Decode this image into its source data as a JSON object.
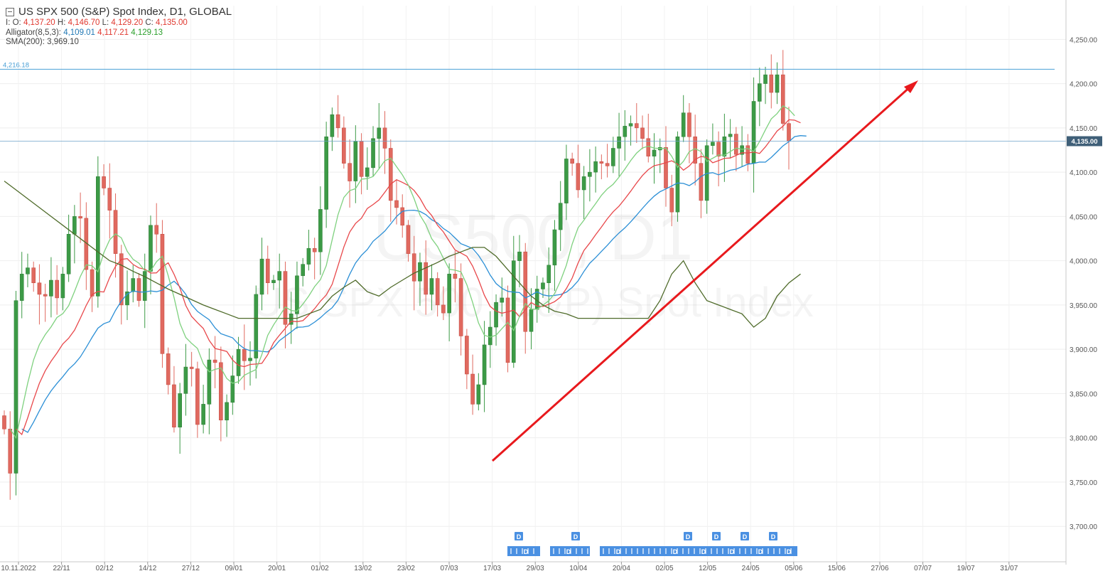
{
  "header": {
    "title": "US SPX 500 (S&P) Spot Index,  D1,  GLOBAL",
    "ohlc": {
      "o_label": "I: O:",
      "o": "4,137.20",
      "h_label": "H:",
      "h": "4,146.70",
      "l_label": "L:",
      "l": "4,129.20",
      "c_label": "C:",
      "c": "4,135.00"
    },
    "alligator": {
      "label": "Alligator(8,5,3):",
      "jaw": "4,109.01",
      "teeth": "4,117.21",
      "lips": "4,129.13"
    },
    "sma": {
      "label": "SMA(200):",
      "value": "3,969.10"
    }
  },
  "watermark": {
    "symbol": "US500, D1",
    "name": "US SPX 500 (S&P) Spot Index"
  },
  "colors": {
    "up": "#3c9a46",
    "down": "#e0695f",
    "jaw": "#2b8fd6",
    "teeth": "#e8474a",
    "lips": "#7fd17f",
    "sma": "#4f6b2a",
    "trend": "#e8191d",
    "hline": "#4aa0d6",
    "event": "#4a90e2"
  },
  "chart_data": {
    "type": "candlestick",
    "y_ticks": [
      "4,250.00",
      "4,200.00",
      "4,150.00",
      "4,100.00",
      "4,050.00",
      "4,000.00",
      "3,950.00",
      "3,900.00",
      "3,850.00",
      "3,800.00",
      "3,750.00",
      "3,700.00"
    ],
    "x_ticks": [
      "10.11.2022",
      "22/11",
      "02/12",
      "14/12",
      "27/12",
      "09/01",
      "20/01",
      "01/02",
      "13/02",
      "23/02",
      "07/03",
      "17/03",
      "29/03",
      "10/04",
      "20/04",
      "02/05",
      "12/05",
      "24/05",
      "05/06",
      "15/06",
      "27/06",
      "07/07",
      "19/07",
      "31/07"
    ],
    "ylim": [
      3660,
      4288
    ],
    "resistance": {
      "value": 4216.18,
      "label": "4,216.18"
    },
    "last_price": {
      "value": 4135.0,
      "label": "4,135.00"
    },
    "closes": [
      3810,
      3760,
      3955,
      3985,
      3992,
      3975,
      3962,
      3960,
      3978,
      3958,
      3985,
      4030,
      4050,
      4048,
      3990,
      3960,
      4095,
      4082,
      4057,
      4008,
      3950,
      3965,
      3980,
      3955,
      3988,
      4040,
      4030,
      3895,
      3860,
      3812,
      3850,
      3880,
      3878,
      3815,
      3838,
      3888,
      3885,
      3820,
      3840,
      3870,
      3900,
      3887,
      3890,
      3962,
      4002,
      3975,
      3978,
      3988,
      3928,
      3940,
      3983,
      3996,
      4014,
      4010,
      4058,
      4140,
      4165,
      4150,
      4110,
      4090,
      4135,
      4095,
      4105,
      4138,
      4150,
      4127,
      4068,
      4060,
      4040,
      4008,
      3977,
      3998,
      3962,
      3980,
      3950,
      3941,
      3985,
      3980,
      3915,
      3872,
      3838,
      3860,
      3905,
      3925,
      3953,
      3958,
      3885,
      4000,
      4010,
      3920,
      3945,
      3968,
      3975,
      3995,
      4035,
      4065,
      4115,
      4110,
      4080,
      4095,
      4100,
      4112,
      4110,
      4107,
      4127,
      4140,
      4152,
      4155,
      4150,
      4138,
      4118,
      4125,
      4128,
      4082,
      4055,
      4140,
      4167,
      4140,
      4110,
      4068,
      4130,
      4134,
      4118,
      4140,
      4143,
      4120,
      4130,
      4110,
      4180,
      4200,
      4210,
      4190,
      4210,
      4155,
      4135
    ],
    "sma200": [
      4090,
      4080,
      4070,
      4060,
      4050,
      4040,
      4030,
      4020,
      4010,
      4000,
      3995,
      3988,
      3982,
      3975,
      3968,
      3962,
      3956,
      3950,
      3945,
      3940,
      3935,
      3935,
      3935,
      3935,
      3935,
      3935,
      3940,
      3945,
      3960,
      3970,
      3978,
      3965,
      3960,
      3970,
      3978,
      3986,
      3992,
      3998,
      4005,
      4010,
      4015,
      4015,
      4005,
      3990,
      3975,
      3960,
      3950,
      3943,
      3940,
      3935,
      3935,
      3935,
      3935,
      3935,
      3935,
      3935,
      3955,
      3985,
      4000,
      3975,
      3955,
      3950,
      3945,
      3940,
      3925,
      3935,
      3960,
      3975,
      3985
    ],
    "sma_step": 2
  },
  "events": [
    {
      "label": "D",
      "count": 4
    },
    {
      "label": "D",
      "count": 5
    },
    {
      "label": "D",
      "count": 6
    },
    {
      "label": "D",
      "count": 4
    },
    {
      "label": "D",
      "count": 4
    },
    {
      "label": "D",
      "count": 4
    },
    {
      "label": "D",
      "count": 4
    }
  ]
}
